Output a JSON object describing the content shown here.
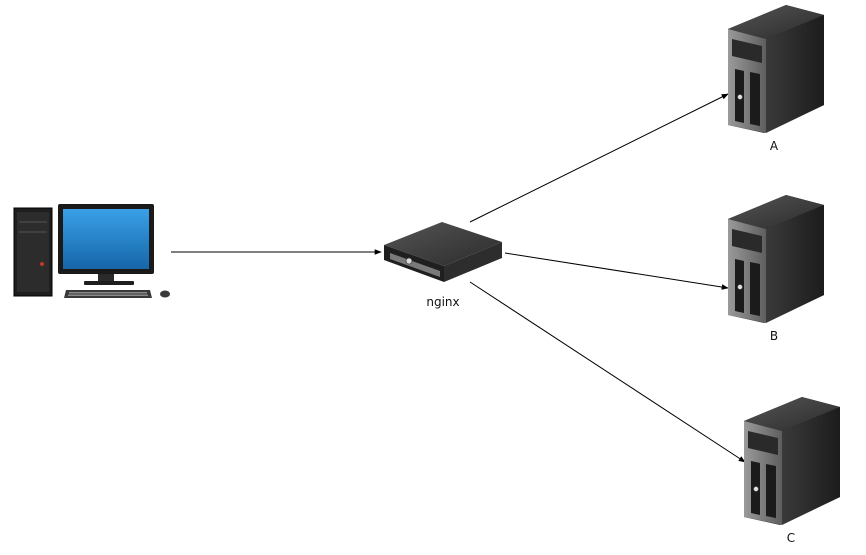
{
  "nodes": {
    "client": {
      "label": ""
    },
    "proxy": {
      "label": "nginx"
    },
    "server_a": {
      "label": "A"
    },
    "server_b": {
      "label": "B"
    },
    "server_c": {
      "label": "C"
    }
  },
  "colors": {
    "edge": "#000000",
    "monitor_screen": "#1f7fc6",
    "device_body": "#2a2a2a",
    "device_panel": "#8a8a8a"
  },
  "icons": {
    "client": "desktop-computer-icon",
    "proxy": "network-appliance-icon",
    "servers": "tower-server-icon"
  }
}
